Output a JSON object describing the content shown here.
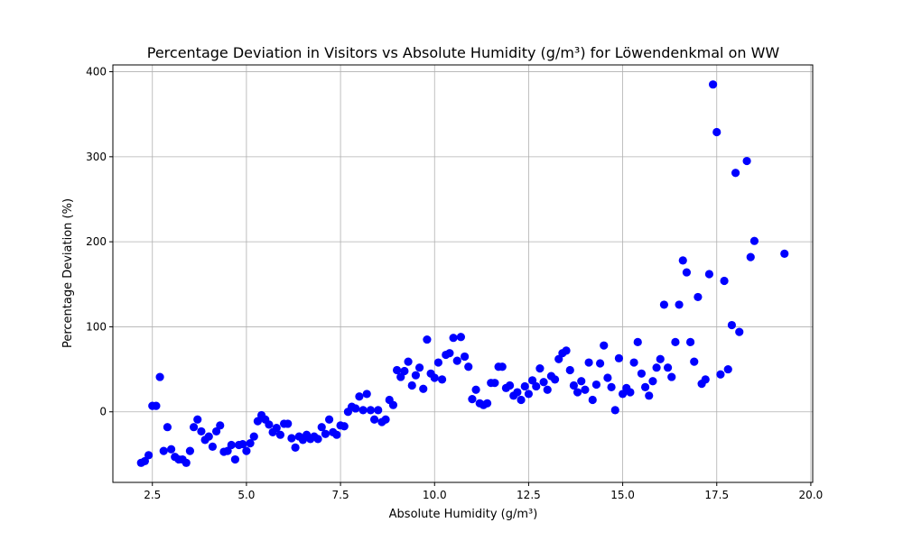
{
  "chart_data": {
    "type": "scatter",
    "title": "Percentage Deviation in Visitors vs Absolute Humidity (g/m³) for Löwendenkmal on WW",
    "xlabel": "Absolute Humidity (g/m³)",
    "ylabel": "Percentage Deviation (%)",
    "xlim": [
      1.45,
      20.05
    ],
    "ylim": [
      -83,
      408
    ],
    "x_ticks": [
      2.5,
      5.0,
      7.5,
      10.0,
      12.5,
      15.0,
      17.5,
      20.0
    ],
    "x_tick_labels": [
      "2.5",
      "5.0",
      "7.5",
      "10.0",
      "12.5",
      "15.0",
      "17.5",
      "20.0"
    ],
    "y_ticks": [
      0,
      100,
      200,
      300,
      400
    ],
    "y_tick_labels": [
      "0",
      "100",
      "200",
      "300",
      "400"
    ],
    "grid": true,
    "marker_color": "#0000ff",
    "series": [
      {
        "points": [
          [
            2.2,
            -60
          ],
          [
            2.3,
            -58
          ],
          [
            2.4,
            -51
          ],
          [
            2.5,
            7
          ],
          [
            2.6,
            7
          ],
          [
            2.7,
            41
          ],
          [
            2.8,
            -46
          ],
          [
            2.9,
            -18
          ],
          [
            3.0,
            -44
          ],
          [
            3.1,
            -53
          ],
          [
            3.2,
            -56
          ],
          [
            3.3,
            -56
          ],
          [
            3.4,
            -60
          ],
          [
            3.5,
            -46
          ],
          [
            3.6,
            -18
          ],
          [
            3.7,
            -9
          ],
          [
            3.8,
            -23
          ],
          [
            3.9,
            -33
          ],
          [
            4.0,
            -29
          ],
          [
            4.1,
            -41
          ],
          [
            4.2,
            -23
          ],
          [
            4.3,
            -16
          ],
          [
            4.4,
            -47
          ],
          [
            4.5,
            -46
          ],
          [
            4.6,
            -39
          ],
          [
            4.7,
            -56
          ],
          [
            4.8,
            -39
          ],
          [
            4.9,
            -38
          ],
          [
            5.0,
            -46
          ],
          [
            5.1,
            -37
          ],
          [
            5.2,
            -29
          ],
          [
            5.3,
            -11
          ],
          [
            5.4,
            -4
          ],
          [
            5.5,
            -9
          ],
          [
            5.6,
            -15
          ],
          [
            5.7,
            -24
          ],
          [
            5.8,
            -19
          ],
          [
            5.9,
            -27
          ],
          [
            6.0,
            -14
          ],
          [
            6.1,
            -14
          ],
          [
            6.2,
            -31
          ],
          [
            6.3,
            -42
          ],
          [
            6.4,
            -29
          ],
          [
            6.5,
            -33
          ],
          [
            6.6,
            -27
          ],
          [
            6.7,
            -32
          ],
          [
            6.8,
            -29
          ],
          [
            6.9,
            -32
          ],
          [
            7.0,
            -18
          ],
          [
            7.1,
            -26
          ],
          [
            7.2,
            -9
          ],
          [
            7.3,
            -24
          ],
          [
            7.4,
            -27
          ],
          [
            7.5,
            -16
          ],
          [
            7.6,
            -17
          ],
          [
            7.7,
            0
          ],
          [
            7.8,
            6
          ],
          [
            7.9,
            4
          ],
          [
            8.0,
            18
          ],
          [
            8.1,
            2
          ],
          [
            8.2,
            21
          ],
          [
            8.3,
            2
          ],
          [
            8.4,
            -9
          ],
          [
            8.5,
            2
          ],
          [
            8.6,
            -12
          ],
          [
            8.7,
            -9
          ],
          [
            8.8,
            14
          ],
          [
            8.9,
            8
          ],
          [
            9.0,
            49
          ],
          [
            9.1,
            41
          ],
          [
            9.2,
            48
          ],
          [
            9.3,
            59
          ],
          [
            9.4,
            31
          ],
          [
            9.5,
            43
          ],
          [
            9.6,
            52
          ],
          [
            9.7,
            27
          ],
          [
            9.8,
            85
          ],
          [
            9.9,
            45
          ],
          [
            10.0,
            40
          ],
          [
            10.1,
            58
          ],
          [
            10.2,
            38
          ],
          [
            10.3,
            67
          ],
          [
            10.4,
            69
          ],
          [
            10.5,
            87
          ],
          [
            10.6,
            60
          ],
          [
            10.7,
            88
          ],
          [
            10.8,
            65
          ],
          [
            10.9,
            53
          ],
          [
            11.0,
            15
          ],
          [
            11.1,
            26
          ],
          [
            11.2,
            10
          ],
          [
            11.3,
            8
          ],
          [
            11.4,
            10
          ],
          [
            11.5,
            34
          ],
          [
            11.6,
            34
          ],
          [
            11.7,
            53
          ],
          [
            11.8,
            53
          ],
          [
            11.9,
            28
          ],
          [
            12.0,
            31
          ],
          [
            12.1,
            19
          ],
          [
            12.2,
            23
          ],
          [
            12.3,
            14
          ],
          [
            12.4,
            30
          ],
          [
            12.5,
            21
          ],
          [
            12.6,
            37
          ],
          [
            12.7,
            30
          ],
          [
            12.8,
            51
          ],
          [
            12.9,
            35
          ],
          [
            13.0,
            26
          ],
          [
            13.1,
            42
          ],
          [
            13.2,
            38
          ],
          [
            13.3,
            62
          ],
          [
            13.4,
            69
          ],
          [
            13.5,
            72
          ],
          [
            13.6,
            49
          ],
          [
            13.7,
            31
          ],
          [
            13.8,
            23
          ],
          [
            13.9,
            36
          ],
          [
            14.0,
            26
          ],
          [
            14.1,
            58
          ],
          [
            14.2,
            14
          ],
          [
            14.3,
            32
          ],
          [
            14.4,
            57
          ],
          [
            14.5,
            78
          ],
          [
            14.6,
            40
          ],
          [
            14.7,
            29
          ],
          [
            14.8,
            2
          ],
          [
            14.9,
            63
          ],
          [
            15.0,
            21
          ],
          [
            15.1,
            28
          ],
          [
            15.2,
            23
          ],
          [
            15.3,
            58
          ],
          [
            15.4,
            82
          ],
          [
            15.5,
            45
          ],
          [
            15.6,
            29
          ],
          [
            15.7,
            19
          ],
          [
            15.8,
            36
          ],
          [
            15.9,
            52
          ],
          [
            16.0,
            62
          ],
          [
            16.1,
            126
          ],
          [
            16.2,
            52
          ],
          [
            16.3,
            41
          ],
          [
            16.4,
            82
          ],
          [
            16.5,
            126
          ],
          [
            16.6,
            178
          ],
          [
            16.7,
            164
          ],
          [
            16.8,
            82
          ],
          [
            16.9,
            59
          ],
          [
            17.0,
            135
          ],
          [
            17.1,
            33
          ],
          [
            17.2,
            38
          ],
          [
            17.3,
            162
          ],
          [
            17.4,
            385
          ],
          [
            17.5,
            329
          ],
          [
            17.6,
            44
          ],
          [
            17.7,
            154
          ],
          [
            17.8,
            50
          ],
          [
            17.9,
            102
          ],
          [
            18.0,
            281
          ],
          [
            18.1,
            94
          ],
          [
            18.3,
            295
          ],
          [
            18.4,
            182
          ],
          [
            18.5,
            201
          ],
          [
            19.3,
            186
          ]
        ]
      }
    ]
  }
}
